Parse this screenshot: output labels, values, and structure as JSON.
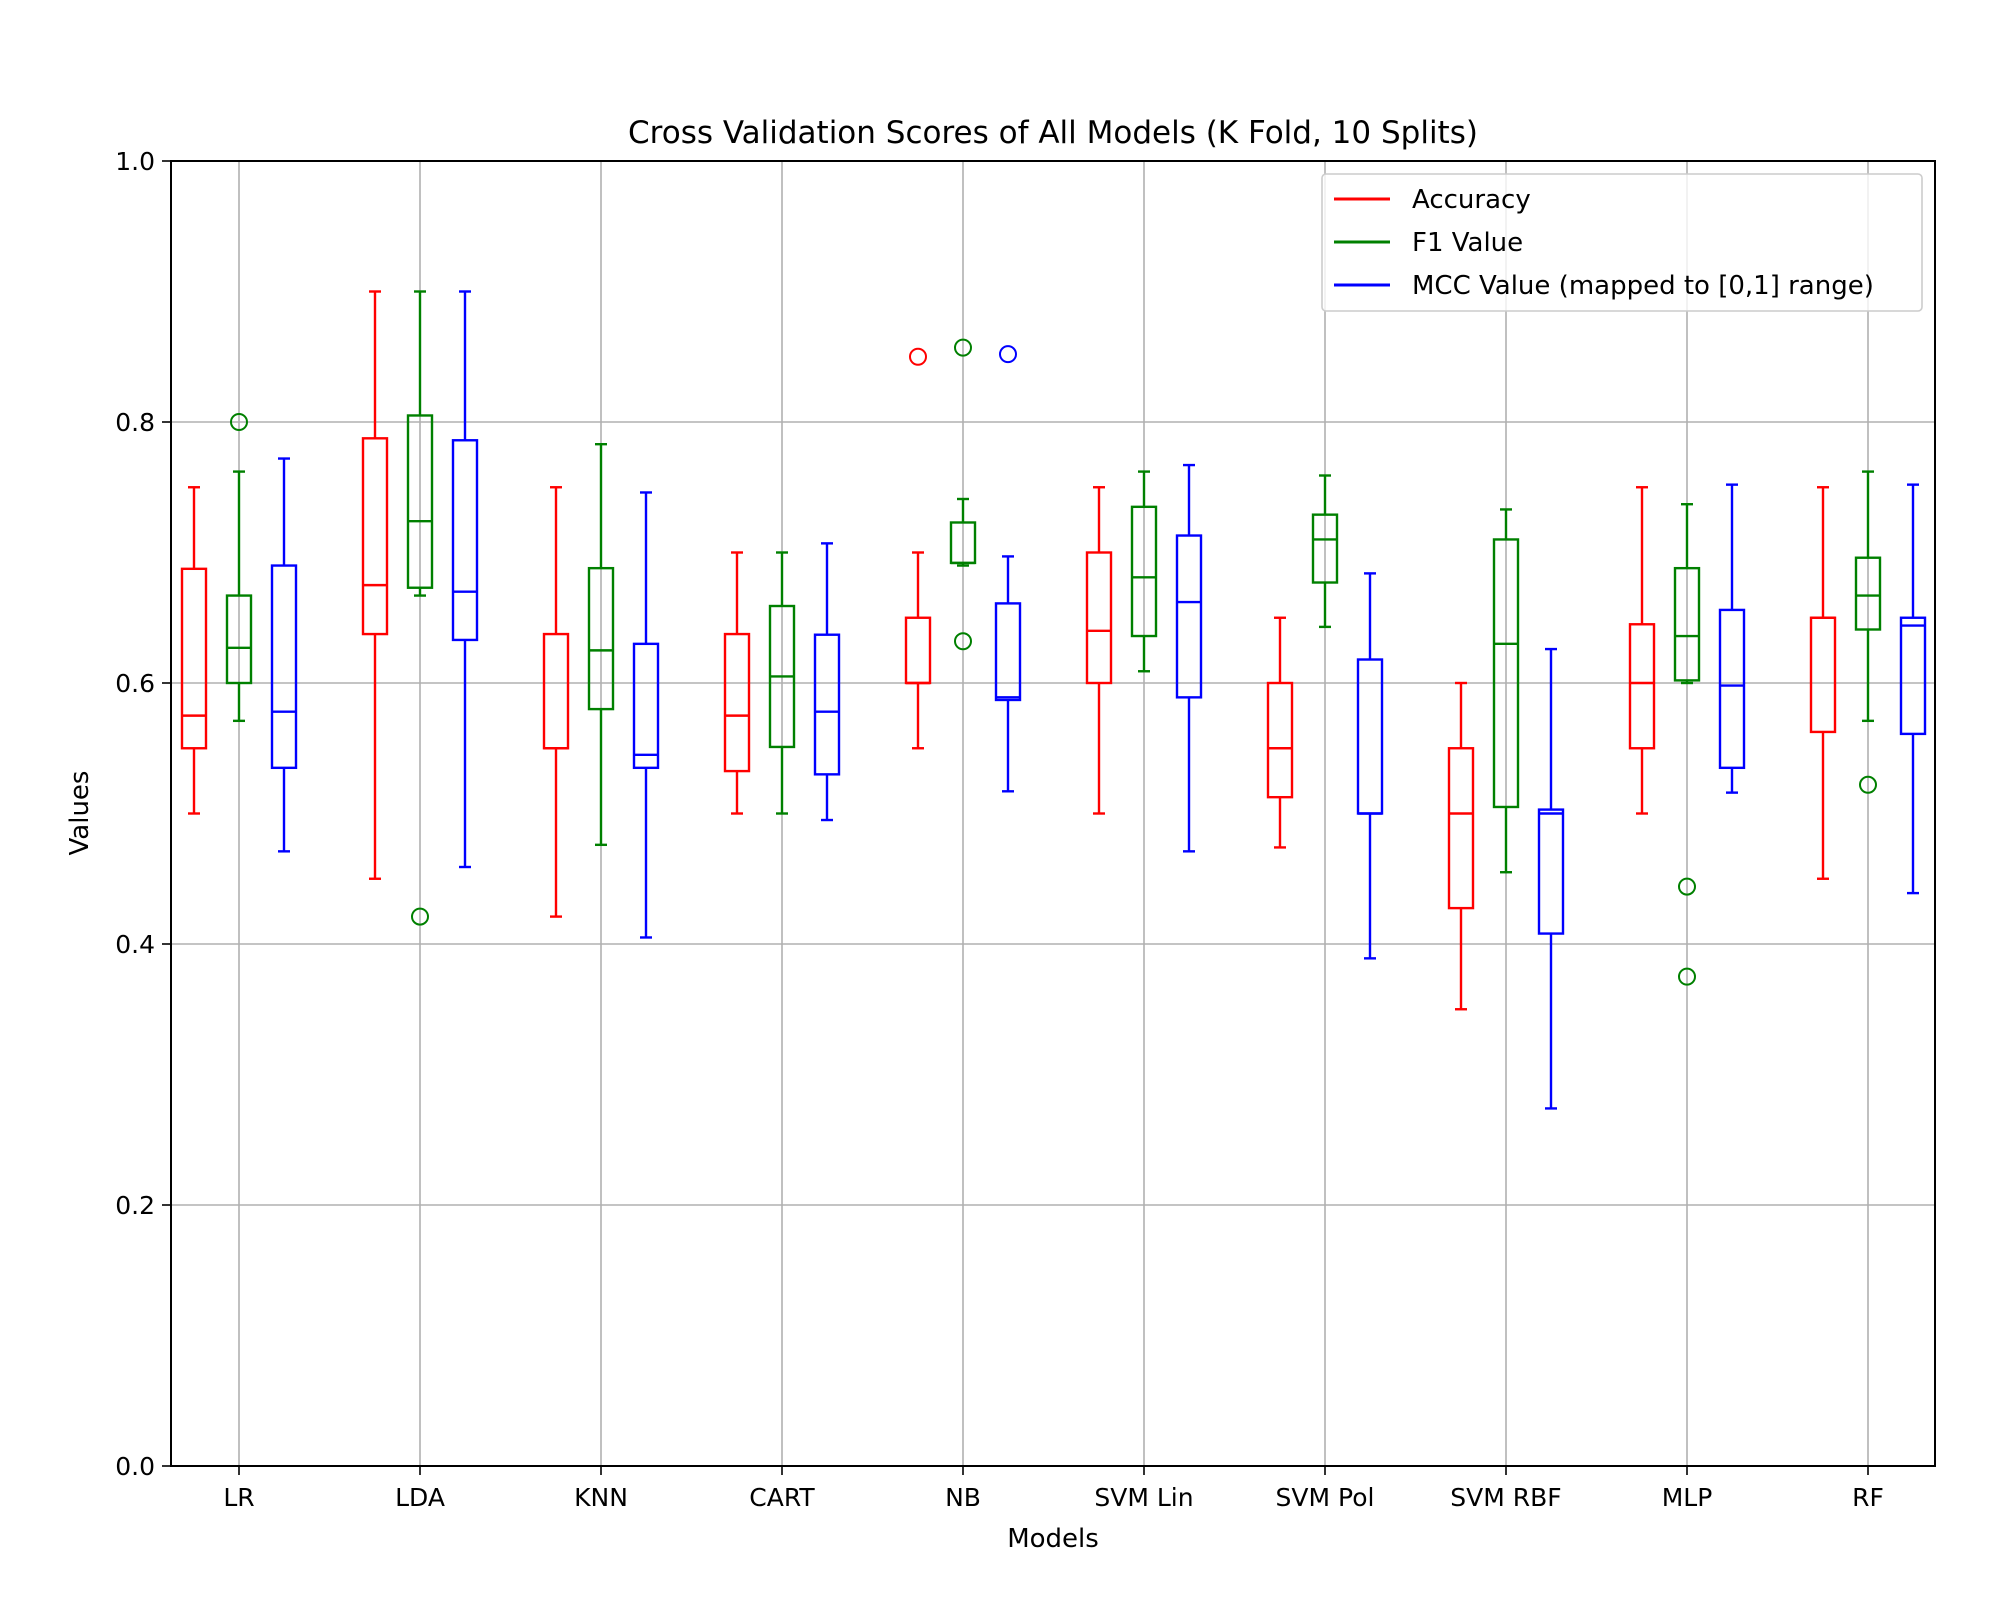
{
  "chart_data": {
    "type": "box",
    "title": "Cross Validation Scores of All Models (K Fold, 10 Splits)",
    "xlabel": "Models",
    "ylabel": "Values",
    "ylim": [
      0.0,
      1.0
    ],
    "yticks": [
      "0.0",
      "0.2",
      "0.4",
      "0.6",
      "0.8",
      "1.0"
    ],
    "grid": true,
    "legend_position": "top-right",
    "categories": [
      "LR",
      "LDA",
      "KNN",
      "CART",
      "NB",
      "SVM Lin",
      "SVM Pol",
      "SVM RBF",
      "MLP",
      "RF"
    ],
    "series": [
      {
        "name": "Accuracy",
        "color": "#ff0000",
        "boxes": [
          {
            "whislo": 0.5,
            "q1": 0.55,
            "med": 0.575,
            "q3": 0.6875,
            "whishi": 0.75,
            "fliers": []
          },
          {
            "whislo": 0.45,
            "q1": 0.6375,
            "med": 0.675,
            "q3": 0.7875,
            "whishi": 0.9,
            "fliers": []
          },
          {
            "whislo": 0.421,
            "q1": 0.55,
            "med": 0.55,
            "q3": 0.6375,
            "whishi": 0.75,
            "fliers": []
          },
          {
            "whislo": 0.5,
            "q1": 0.5325,
            "med": 0.575,
            "q3": 0.6375,
            "whishi": 0.7,
            "fliers": []
          },
          {
            "whislo": 0.55,
            "q1": 0.6,
            "med": 0.6,
            "q3": 0.65,
            "whishi": 0.7,
            "fliers": [
              0.85
            ]
          },
          {
            "whislo": 0.5,
            "q1": 0.6,
            "med": 0.64,
            "q3": 0.7,
            "whishi": 0.75,
            "fliers": []
          },
          {
            "whislo": 0.474,
            "q1": 0.5125,
            "med": 0.55,
            "q3": 0.6,
            "whishi": 0.65,
            "fliers": []
          },
          {
            "whislo": 0.35,
            "q1": 0.4275,
            "med": 0.5,
            "q3": 0.55,
            "whishi": 0.6,
            "fliers": []
          },
          {
            "whislo": 0.5,
            "q1": 0.55,
            "med": 0.6,
            "q3": 0.645,
            "whishi": 0.75,
            "fliers": []
          },
          {
            "whislo": 0.45,
            "q1": 0.5625,
            "med": 0.65,
            "q3": 0.65,
            "whishi": 0.75,
            "fliers": []
          }
        ]
      },
      {
        "name": "F1 Value",
        "color": "#008000",
        "boxes": [
          {
            "whislo": 0.571,
            "q1": 0.6,
            "med": 0.627,
            "q3": 0.667,
            "whishi": 0.762,
            "fliers": [
              0.8
            ]
          },
          {
            "whislo": 0.667,
            "q1": 0.673,
            "med": 0.724,
            "q3": 0.805,
            "whishi": 0.9,
            "fliers": [
              0.421
            ]
          },
          {
            "whislo": 0.476,
            "q1": 0.58,
            "med": 0.625,
            "q3": 0.688,
            "whishi": 0.783,
            "fliers": []
          },
          {
            "whislo": 0.5,
            "q1": 0.551,
            "med": 0.605,
            "q3": 0.659,
            "whishi": 0.7,
            "fliers": []
          },
          {
            "whislo": 0.69,
            "q1": 0.692,
            "med": 0.692,
            "q3": 0.723,
            "whishi": 0.741,
            "fliers": [
              0.857,
              0.632
            ]
          },
          {
            "whislo": 0.609,
            "q1": 0.636,
            "med": 0.681,
            "q3": 0.735,
            "whishi": 0.762,
            "fliers": []
          },
          {
            "whislo": 0.643,
            "q1": 0.677,
            "med": 0.71,
            "q3": 0.729,
            "whishi": 0.759,
            "fliers": []
          },
          {
            "whislo": 0.455,
            "q1": 0.505,
            "med": 0.63,
            "q3": 0.71,
            "whishi": 0.733,
            "fliers": []
          },
          {
            "whislo": 0.6,
            "q1": 0.602,
            "med": 0.636,
            "q3": 0.688,
            "whishi": 0.737,
            "fliers": [
              0.444,
              0.375
            ]
          },
          {
            "whislo": 0.571,
            "q1": 0.641,
            "med": 0.667,
            "q3": 0.696,
            "whishi": 0.762,
            "fliers": [
              0.522
            ]
          }
        ]
      },
      {
        "name": "MCC Value (mapped to [0,1] range)",
        "color": "#0000ff",
        "boxes": [
          {
            "whislo": 0.471,
            "q1": 0.535,
            "med": 0.578,
            "q3": 0.69,
            "whishi": 0.772,
            "fliers": []
          },
          {
            "whislo": 0.459,
            "q1": 0.633,
            "med": 0.67,
            "q3": 0.786,
            "whishi": 0.9,
            "fliers": []
          },
          {
            "whislo": 0.405,
            "q1": 0.535,
            "med": 0.545,
            "q3": 0.63,
            "whishi": 0.746,
            "fliers": []
          },
          {
            "whislo": 0.495,
            "q1": 0.53,
            "med": 0.578,
            "q3": 0.637,
            "whishi": 0.707,
            "fliers": []
          },
          {
            "whislo": 0.517,
            "q1": 0.587,
            "med": 0.589,
            "q3": 0.661,
            "whishi": 0.697,
            "fliers": [
              0.852
            ]
          },
          {
            "whislo": 0.471,
            "q1": 0.589,
            "med": 0.662,
            "q3": 0.713,
            "whishi": 0.767,
            "fliers": []
          },
          {
            "whislo": 0.389,
            "q1": 0.5,
            "med": 0.5,
            "q3": 0.618,
            "whishi": 0.684,
            "fliers": []
          },
          {
            "whislo": 0.274,
            "q1": 0.408,
            "med": 0.5,
            "q3": 0.503,
            "whishi": 0.626,
            "fliers": []
          },
          {
            "whislo": 0.516,
            "q1": 0.535,
            "med": 0.598,
            "q3": 0.656,
            "whishi": 0.752,
            "fliers": []
          },
          {
            "whislo": 0.439,
            "q1": 0.561,
            "med": 0.644,
            "q3": 0.65,
            "whishi": 0.752,
            "fliers": []
          }
        ]
      }
    ]
  }
}
